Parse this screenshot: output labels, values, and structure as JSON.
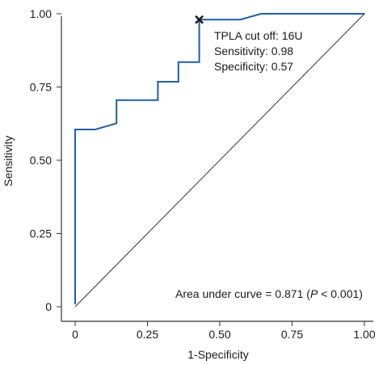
{
  "chart_data": {
    "type": "line",
    "title": "",
    "xlabel": "1-Specificity",
    "ylabel": "Sensitivity",
    "xlim": [
      0,
      1
    ],
    "ylim": [
      0,
      1
    ],
    "x_ticks": [
      {
        "value": 0,
        "label": "0"
      },
      {
        "value": 0.25,
        "label": "0.25"
      },
      {
        "value": 0.5,
        "label": "0.50"
      },
      {
        "value": 0.75,
        "label": "0.75"
      },
      {
        "value": 1,
        "label": "1.00"
      }
    ],
    "y_ticks": [
      {
        "value": 0,
        "label": "0"
      },
      {
        "value": 0.25,
        "label": "0.25"
      },
      {
        "value": 0.5,
        "label": "0.50"
      },
      {
        "value": 0.75,
        "label": "0.75"
      },
      {
        "value": 1,
        "label": "1.00"
      }
    ],
    "grid": false,
    "series": [
      {
        "x": [
          0,
          0,
          0.07,
          0.143,
          0.143,
          0.286,
          0.286,
          0.357,
          0.357,
          0.429,
          0.429,
          0.571,
          0.643,
          1.0
        ],
        "y": [
          0.01,
          0.605,
          0.605,
          0.626,
          0.705,
          0.705,
          0.768,
          0.768,
          0.835,
          0.835,
          0.98,
          0.98,
          1.0,
          1.0
        ]
      }
    ],
    "reference_line": {
      "x": [
        0,
        1
      ],
      "y": [
        0,
        1
      ]
    },
    "marker": {
      "x": 0.429,
      "y": 0.98,
      "symbol": "x"
    },
    "annotations": {
      "cutoff_line1": "TPLA cut off: 16U",
      "cutoff_line2": "Sensitivity: 0.98",
      "cutoff_line3": "Specificity: 0.57",
      "auc_prefix": "Area under curve = 0.871 (",
      "auc_p": "P",
      "auc_suffix": " < 0.001)"
    },
    "colors": {
      "roc_line": "#1f5fa6",
      "reference_line": "#333333",
      "axes": "#333333",
      "marker": "#1a1a1a"
    }
  }
}
